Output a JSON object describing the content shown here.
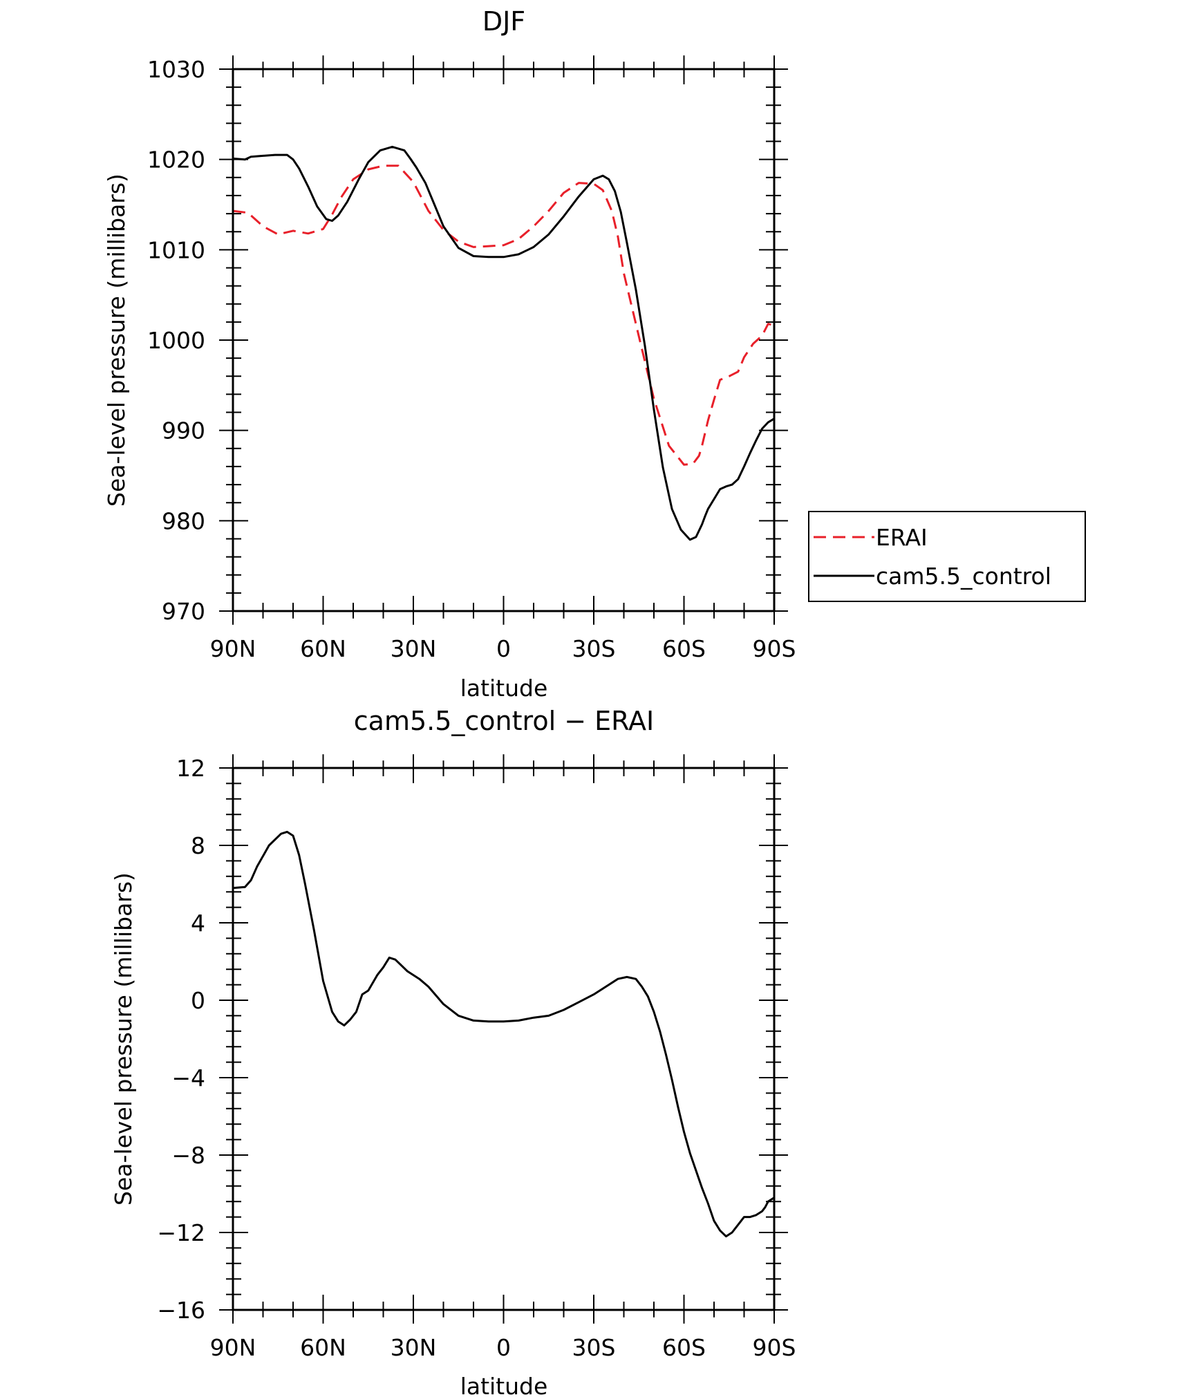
{
  "chart_data": [
    {
      "type": "line",
      "title": "DJF",
      "xlabel": "latitude",
      "ylabel": "Sea-level pressure (millibars)",
      "xlim": [
        90,
        -90
      ],
      "ylim": [
        970,
        1030
      ],
      "xticks": [
        "90N",
        "60N",
        "30N",
        "0",
        "30S",
        "60S",
        "90S"
      ],
      "xtick_values": [
        90,
        60,
        30,
        0,
        -30,
        -60,
        -90
      ],
      "yticks": [
        "970",
        "980",
        "990",
        "1000",
        "1010",
        "1020",
        "1030"
      ],
      "ytick_values": [
        970,
        980,
        990,
        1000,
        1010,
        1020,
        1030
      ],
      "legend_position": "right",
      "series": [
        {
          "name": "ERAI",
          "color": "#e8202a",
          "dash": "dashed",
          "x": [
            90,
            85,
            80,
            75,
            70,
            65,
            60,
            57,
            54,
            50,
            45,
            40,
            35,
            30,
            25,
            20,
            15,
            10,
            5,
            0,
            -5,
            -10,
            -15,
            -20,
            -25,
            -30,
            -33,
            -36,
            -38,
            -40,
            -45,
            -50,
            -55,
            -60,
            -63,
            -65,
            -66,
            -68,
            -70,
            -72,
            -75,
            -78,
            -80,
            -83,
            -86,
            -88,
            -90
          ],
          "y": [
            1014.3,
            1014.1,
            1012.6,
            1011.7,
            1012.1,
            1011.8,
            1012.3,
            1013.9,
            1015.8,
            1017.8,
            1018.9,
            1019.3,
            1019.3,
            1017.5,
            1014.3,
            1012.2,
            1010.9,
            1010.3,
            1010.4,
            1010.5,
            1011.2,
            1012.6,
            1014.3,
            1016.3,
            1017.4,
            1017.3,
            1016.6,
            1014.3,
            1011.5,
            1007.4,
            1000.4,
            993.5,
            988.3,
            986.2,
            986.3,
            987.2,
            988.3,
            991.1,
            993.4,
            995.6,
            996.0,
            996.5,
            998.1,
            999.6,
            1000.5,
            1001.8,
            1001.6
          ]
        },
        {
          "name": "cam5.5_control",
          "color": "#000000",
          "dash": "solid",
          "x": [
            90,
            86,
            84,
            80,
            76,
            72,
            70,
            68,
            65,
            62,
            59,
            57,
            55,
            52,
            48,
            45,
            41,
            37,
            33,
            31,
            29,
            26,
            23,
            20,
            15,
            10,
            5,
            0,
            -5,
            -10,
            -15,
            -20,
            -25,
            -30,
            -33,
            -35,
            -37,
            -39,
            -41,
            -44,
            -47,
            -50,
            -53,
            -56,
            -59,
            -62,
            -64,
            -66,
            -67,
            -68,
            -70,
            -72,
            -74,
            -76,
            -78,
            -80,
            -82,
            -84,
            -86,
            -88,
            -90
          ],
          "y": [
            1020.1,
            1020.0,
            1020.3,
            1020.4,
            1020.5,
            1020.5,
            1020.0,
            1019.0,
            1017.0,
            1014.8,
            1013.4,
            1013.2,
            1013.8,
            1015.3,
            1017.9,
            1019.7,
            1021.0,
            1021.4,
            1021.0,
            1020.1,
            1019.1,
            1017.4,
            1015.0,
            1012.6,
            1010.2,
            1009.3,
            1009.2,
            1009.2,
            1009.5,
            1010.3,
            1011.7,
            1013.7,
            1015.9,
            1017.8,
            1018.2,
            1017.8,
            1016.5,
            1014.2,
            1010.8,
            1005.6,
            999.4,
            992.3,
            985.9,
            981.3,
            979.0,
            977.9,
            978.2,
            979.6,
            980.5,
            981.3,
            982.4,
            983.5,
            983.8,
            984.0,
            984.6,
            986.0,
            987.5,
            988.9,
            990.2,
            990.9,
            991.3
          ]
        }
      ]
    },
    {
      "type": "line",
      "title": "cam5.5_control − ERAI",
      "xlabel": "latitude",
      "ylabel": "Sea-level pressure (millibars)",
      "xlim": [
        90,
        -90
      ],
      "ylim": [
        -16,
        12
      ],
      "xticks": [
        "90N",
        "60N",
        "30N",
        "0",
        "30S",
        "60S",
        "90S"
      ],
      "xtick_values": [
        90,
        60,
        30,
        0,
        -30,
        -60,
        -90
      ],
      "yticks": [
        "−16",
        "−12",
        "−8",
        "−4",
        "0",
        "4",
        "8",
        "12"
      ],
      "ytick_values": [
        -16,
        -12,
        -8,
        -4,
        0,
        4,
        8,
        12
      ],
      "series": [
        {
          "color": "#000000",
          "dash": "solid",
          "x": [
            90,
            86,
            84,
            82,
            78,
            74,
            72,
            70,
            68,
            66,
            63,
            60,
            57,
            55,
            53,
            51,
            49,
            47,
            45,
            42,
            40,
            38,
            36,
            34,
            32,
            30,
            28,
            25,
            20,
            15,
            10,
            5,
            0,
            -5,
            -10,
            -15,
            -20,
            -25,
            -30,
            -35,
            -38,
            -41,
            -44,
            -46,
            -48,
            -50,
            -52,
            -54,
            -56,
            -58,
            -60,
            -62,
            -64,
            -66,
            -68,
            -70,
            -72,
            -74,
            -76,
            -78,
            -80,
            -82,
            -84,
            -86,
            -87,
            -88,
            -89,
            -90
          ],
          "y": [
            5.8,
            5.85,
            6.2,
            6.9,
            8.0,
            8.6,
            8.7,
            8.5,
            7.5,
            6.0,
            3.6,
            1.0,
            -0.6,
            -1.1,
            -1.3,
            -1.0,
            -0.6,
            0.3,
            0.5,
            1.3,
            1.7,
            2.2,
            2.1,
            1.8,
            1.5,
            1.3,
            1.1,
            0.7,
            -0.2,
            -0.8,
            -1.05,
            -1.1,
            -1.1,
            -1.05,
            -0.9,
            -0.8,
            -0.5,
            -0.1,
            0.3,
            0.8,
            1.1,
            1.2,
            1.1,
            0.7,
            0.2,
            -0.6,
            -1.6,
            -2.8,
            -4.1,
            -5.5,
            -6.8,
            -7.9,
            -8.8,
            -9.7,
            -10.5,
            -11.4,
            -11.9,
            -12.2,
            -12.0,
            -11.6,
            -11.2,
            -11.2,
            -11.1,
            -10.9,
            -10.7,
            -10.4,
            -10.3,
            -10.2
          ]
        }
      ]
    }
  ]
}
